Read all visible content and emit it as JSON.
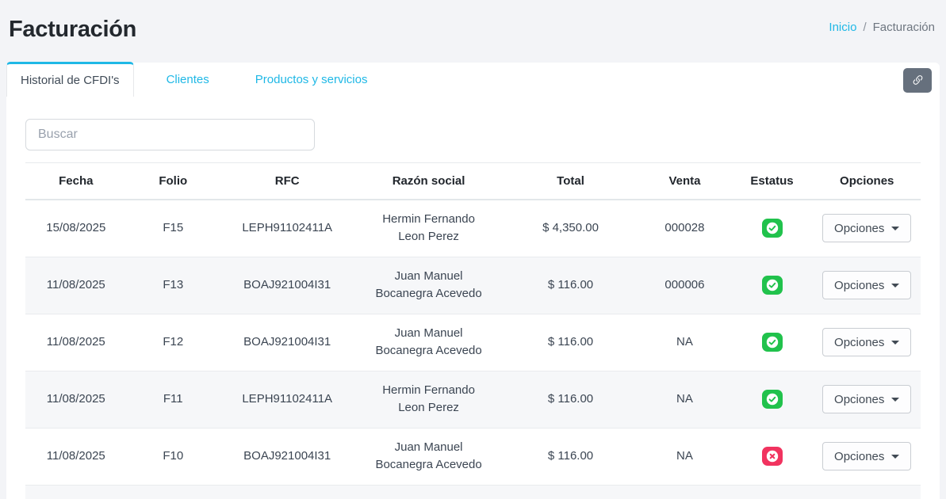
{
  "page": {
    "title": "Facturación"
  },
  "breadcrumb": {
    "home": "Inicio",
    "separator": "/",
    "current": "Facturación"
  },
  "tabs": [
    {
      "label": "Historial de CFDI's",
      "active": true
    },
    {
      "label": "Clientes",
      "active": false
    },
    {
      "label": "Productos y servicios",
      "active": false
    }
  ],
  "toolbar": {
    "link_button_icon": "link-icon"
  },
  "search": {
    "placeholder": "Buscar",
    "value": ""
  },
  "table": {
    "columns": [
      "Fecha",
      "Folio",
      "RFC",
      "Razón social",
      "Total",
      "Venta",
      "Estatus",
      "Opciones"
    ],
    "options_label": "Opciones",
    "rows": [
      {
        "fecha": "15/08/2025",
        "folio": "F15",
        "rfc": "LEPH91102411A",
        "razon_social": "Hermin Fernando Leon Perez",
        "total": "$ 4,350.00",
        "venta": "000028",
        "estatus": "success"
      },
      {
        "fecha": "11/08/2025",
        "folio": "F13",
        "rfc": "BOAJ921004I31",
        "razon_social": "Juan Manuel Bocanegra Acevedo",
        "total": "$ 116.00",
        "venta": "000006",
        "estatus": "success"
      },
      {
        "fecha": "11/08/2025",
        "folio": "F12",
        "rfc": "BOAJ921004I31",
        "razon_social": "Juan Manuel Bocanegra Acevedo",
        "total": "$ 116.00",
        "venta": "NA",
        "estatus": "success"
      },
      {
        "fecha": "11/08/2025",
        "folio": "F11",
        "rfc": "LEPH91102411A",
        "razon_social": "Hermin Fernando Leon Perez",
        "total": "$ 116.00",
        "venta": "NA",
        "estatus": "success"
      },
      {
        "fecha": "11/08/2025",
        "folio": "F10",
        "rfc": "BOAJ921004I31",
        "razon_social": "Juan Manuel Bocanegra Acevedo",
        "total": "$ 116.00",
        "venta": "NA",
        "estatus": "error"
      }
    ]
  },
  "icons": {
    "toolbar_button": "link-icon",
    "status_success": "check-circle-icon",
    "status_error": "x-circle-icon",
    "options_caret": "caret-down-icon"
  },
  "colors": {
    "accent": "#1fb8e6",
    "success": "#21c24c",
    "danger": "#f1335f",
    "link_button_bg": "#66707d"
  }
}
